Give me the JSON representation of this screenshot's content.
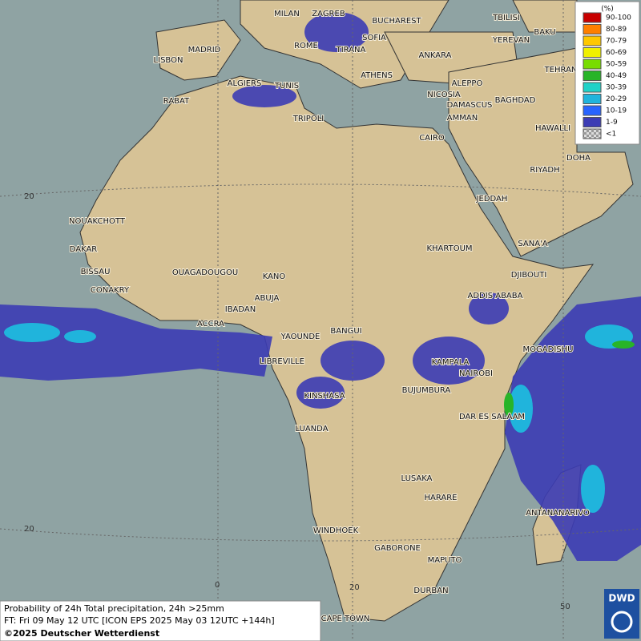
{
  "legend": {
    "title": "(%)",
    "items": [
      {
        "label": "90-100",
        "color": "#c80000"
      },
      {
        "label": "80-89",
        "color": "#ff7f00"
      },
      {
        "label": "70-79",
        "color": "#ffc800"
      },
      {
        "label": "60-69",
        "color": "#f0f000"
      },
      {
        "label": "50-59",
        "color": "#78dc00"
      },
      {
        "label": "40-49",
        "color": "#28b428"
      },
      {
        "label": "30-39",
        "color": "#20d2c8"
      },
      {
        "label": "20-29",
        "color": "#20b4dc"
      },
      {
        "label": "10-19",
        "color": "#2864ff"
      },
      {
        "label": "1-9",
        "color": "#3c3cb4"
      },
      {
        "label": "<1",
        "color": "#bbbbbb"
      }
    ]
  },
  "cities": [
    "MILAN",
    "ZAGREB",
    "BUCHAREST",
    "TBILISI",
    "BAKU",
    "ROME",
    "SOFIA",
    "YEREVAN",
    "MADRID",
    "TIRANA",
    "ANKARA",
    "LISBON",
    "TEHRAN",
    "ATHENS",
    "ALGIERS",
    "TUNIS",
    "ALEPPO",
    "RABAT",
    "NICOSIA",
    "BAGHDAD",
    "DAMASCUS",
    "AMMAN",
    "TRIPOLI",
    "HAWALLI",
    "CAIRO",
    "DOHA",
    "RIYADH",
    "JEDDAH",
    "NOUAKCHOTT",
    "KHARTOUM",
    "SANA'A",
    "DAKAR",
    "BISSAU",
    "OUAGADOUGOU",
    "KANO",
    "DJIBOUTI",
    "CONAKRY",
    "ABUJA",
    "ADDIS ABABA",
    "IBADAN",
    "ACCRA",
    "BANGUI",
    "YAOUNDE",
    "MOGADISHU",
    "LIBREVILLE",
    "KAMPALA",
    "NAIROBI",
    "BUJUMBURA",
    "KINSHASA",
    "DAR ES SALAAM",
    "LUANDA",
    "LUSAKA",
    "HARARE",
    "ANTANANARIVO",
    "WINDHOEK",
    "GABORONE",
    "MAPUTO",
    "DURBAN",
    "CAPE TOWN"
  ],
  "grid_labels": [
    "20",
    "20",
    "0",
    "20",
    "50"
  ],
  "footer": {
    "line1": "Probability of 24h Total precipitation, 24h >25mm",
    "line2": "FT: Fri 09 May 12 UTC [ICON EPS 2025 May 03 12UTC +144h]",
    "line3": "©2025 Deutscher Wetterdienst"
  },
  "logo": "DWD"
}
